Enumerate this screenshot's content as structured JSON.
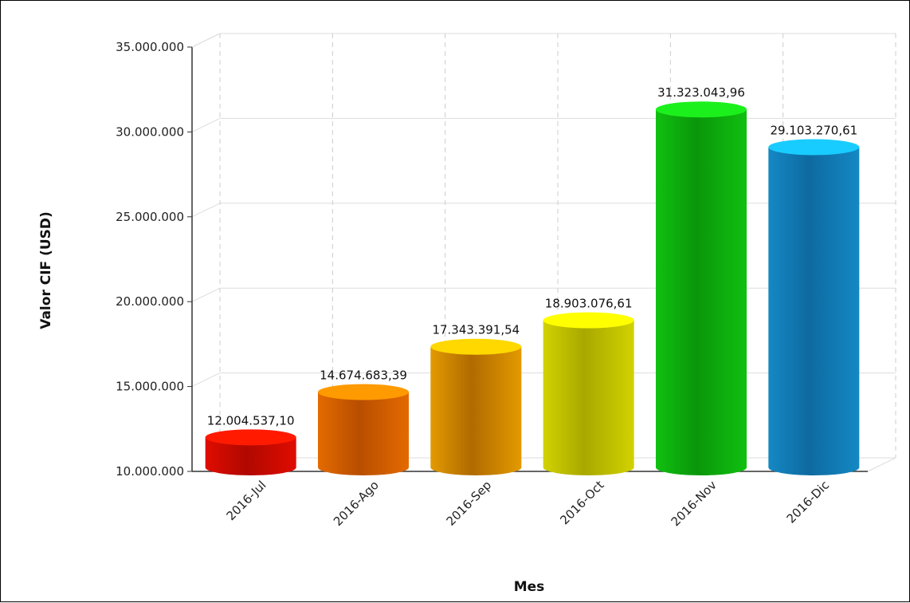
{
  "chart_data": {
    "type": "bar",
    "bar_shape": "cylinder-3d",
    "categories": [
      "2016-Jul",
      "2016-Ago",
      "2016-Sep",
      "2016-Oct",
      "2016-Nov",
      "2016-Dic"
    ],
    "values": [
      12004537.1,
      14674683.39,
      17343391.54,
      18903076.61,
      31323043.96,
      29103270.61
    ],
    "data_labels": [
      "12.004.537,10",
      "14.674.683,39",
      "17.343.391,54",
      "18.903.076,61",
      "31.323.043,96",
      "29.103.270,61"
    ],
    "y_ticks": [
      10000000,
      15000000,
      20000000,
      25000000,
      30000000,
      35000000
    ],
    "y_tick_labels": [
      "10.000.000",
      "15.000.000",
      "20.000.000",
      "25.000.000",
      "30.000.000",
      "35.000.000"
    ],
    "ylim": [
      10000000,
      35000000
    ],
    "xlabel": "Mes",
    "ylabel": "Valor CIF (USD)",
    "grid": true,
    "colors": [
      {
        "top": "#ff1a00",
        "front": "#e00c00",
        "dark": "#b00800"
      },
      {
        "top": "#ff9a00",
        "front": "#e46a00",
        "dark": "#b84e00"
      },
      {
        "top": "#ffd800",
        "front": "#e39a00",
        "dark": "#b06a00"
      },
      {
        "top": "#ffff00",
        "front": "#d2d200",
        "dark": "#a8a800"
      },
      {
        "top": "#1cf01c",
        "front": "#10c010",
        "dark": "#0a960a"
      },
      {
        "top": "#19ccff",
        "front": "#1488c4",
        "dark": "#0e6aa0"
      }
    ]
  }
}
